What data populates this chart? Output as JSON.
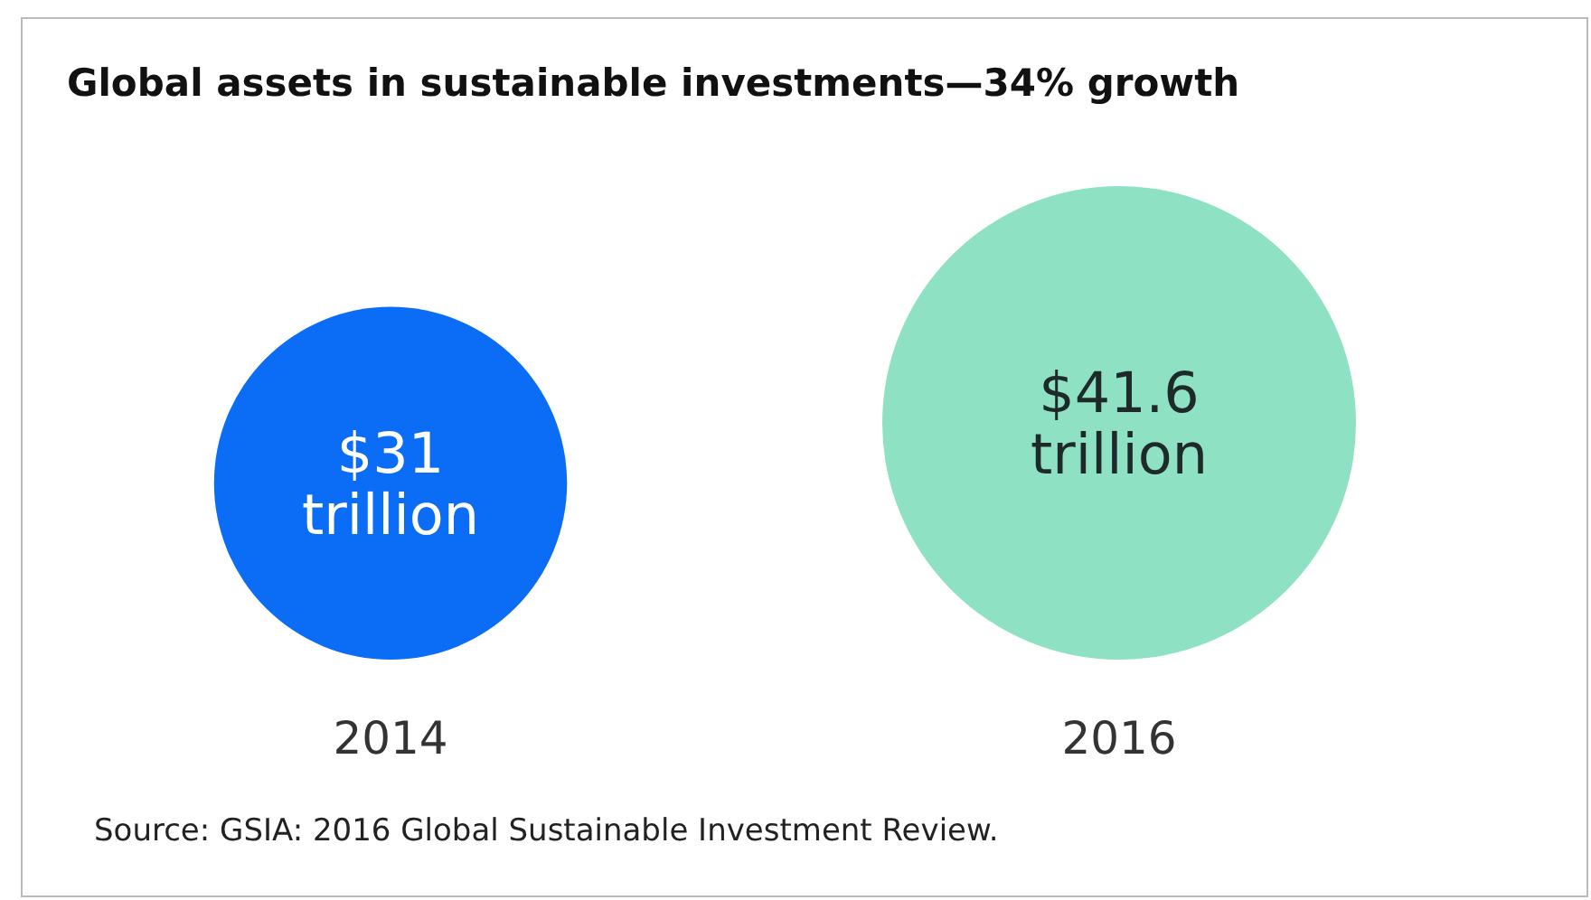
{
  "chart_data": {
    "type": "other",
    "title": "Global assets in sustainable investments—34% growth",
    "categories": [
      "2014",
      "2016"
    ],
    "values": [
      31,
      41.6
    ],
    "colors": [
      "#0b6cf6",
      "#8ee2c3"
    ],
    "value_labels": [
      "$31 trillion",
      "$41.6 trillion"
    ],
    "annotations": [
      "Source: GSIA: 2016 Global Sustainable Investment Review."
    ]
  }
}
